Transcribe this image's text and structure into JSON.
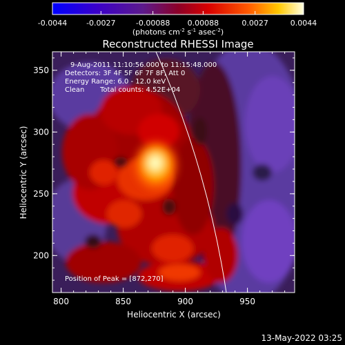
{
  "chart_data": {
    "type": "heatmap",
    "title": "Reconstructed RHESSI Image",
    "xlabel": "Heliocentric X (arcsec)",
    "ylabel": "Heliocentric Y (arcsec)",
    "xlim": [
      793,
      988
    ],
    "ylim": [
      170,
      365
    ],
    "x_ticks": [
      800,
      850,
      900,
      950
    ],
    "y_ticks": [
      200,
      250,
      300,
      350
    ],
    "x_tick_labels": [
      "800",
      "850",
      "900",
      "950"
    ],
    "y_tick_labels": [
      "200",
      "250",
      "300",
      "350"
    ],
    "colorbar": {
      "ticks": [
        -0.0044,
        -0.0027,
        -0.00088,
        0.00088,
        0.0027,
        0.0044
      ],
      "tick_labels": [
        "-0.0044",
        "-0.0027",
        "-0.00088",
        "0.00088",
        "0.0027",
        "0.0044"
      ],
      "min": -0.0044,
      "max": 0.0044,
      "units": "(photons cm",
      "units_exp1": "-2",
      "units_mid": " s",
      "units_exp2": "-1",
      "units_end": " asec",
      "units_exp3": "-2",
      "units_close": ")"
    },
    "annotations": {
      "time": "9-Aug-2011 11:10:56.000 to 11:15:48.000",
      "detectors": "Detectors: 3F 4F 5F 6F 7F 8F, Att 0",
      "energy": "Energy Range: 6.0 - 12.0 keV",
      "method": "Clean",
      "counts": "Total counts: 4.52E+04",
      "peak": "Position of Peak = [872,270]"
    },
    "peak": [
      872,
      270
    ],
    "timestamp": "13-May-2022 03:25",
    "colors": {
      "low": "#0000ff",
      "mid": "#e00000",
      "high": "#ffffe0"
    }
  }
}
